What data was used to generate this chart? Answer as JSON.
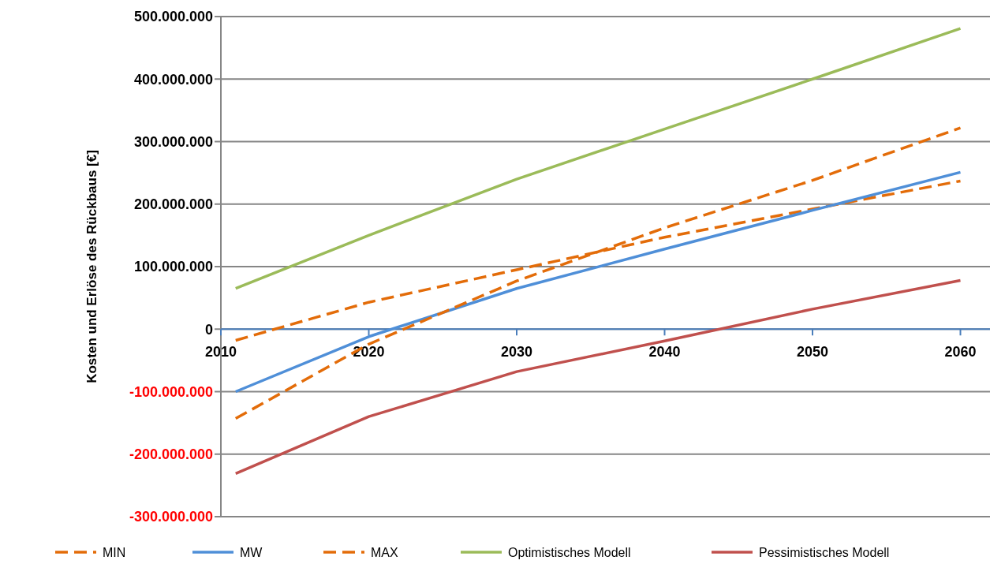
{
  "chart_data": {
    "type": "line",
    "ylabel": "Kosten und Erlöse des Rückbaus [€]",
    "x": [
      2011,
      2020,
      2030,
      2040,
      2050,
      2060
    ],
    "series": [
      {
        "name": "MIN",
        "color": "#e36c09",
        "line_style": "dashed",
        "values": [
          -18000000,
          43000000,
          95000000,
          147000000,
          192000000,
          237000000
        ]
      },
      {
        "name": "MW",
        "color": "#4f8fd8",
        "values": [
          -100000000,
          -12000000,
          65000000,
          128000000,
          190000000,
          251000000
        ]
      },
      {
        "name": "MAX",
        "color": "#e36c09",
        "line_style": "dashed",
        "values": [
          -143000000,
          -24000000,
          77000000,
          162000000,
          238000000,
          322000000
        ]
      },
      {
        "name": "Optimistisches Modell",
        "color": "#9bbb59",
        "values": [
          65000000,
          150000000,
          240000000,
          320000000,
          400000000,
          481000000
        ]
      },
      {
        "name": "Pessimistisches Modell",
        "color": "#c0504d",
        "values": [
          -231000000,
          -140000000,
          -68000000,
          -19000000,
          32000000,
          78000000
        ]
      }
    ],
    "xlim": [
      2010,
      2062
    ],
    "xticks": [
      2010,
      2020,
      2030,
      2040,
      2050,
      2060
    ],
    "ylim": [
      -300000000,
      500000000
    ],
    "yticks": [
      {
        "value": -300000000,
        "label": "-300.000.000"
      },
      {
        "value": -200000000,
        "label": "-200.000.000"
      },
      {
        "value": -100000000,
        "label": "-100.000.000"
      },
      {
        "value": 0,
        "label": "0"
      },
      {
        "value": 100000000,
        "label": "100.000.000"
      },
      {
        "value": 200000000,
        "label": "200.000.000"
      },
      {
        "value": 300000000,
        "label": "300.000.000"
      },
      {
        "value": 400000000,
        "label": "400.000.000"
      },
      {
        "value": 500000000,
        "label": "500.000.000"
      }
    ],
    "grid": "y",
    "legend": "bottom",
    "marker": "none"
  }
}
